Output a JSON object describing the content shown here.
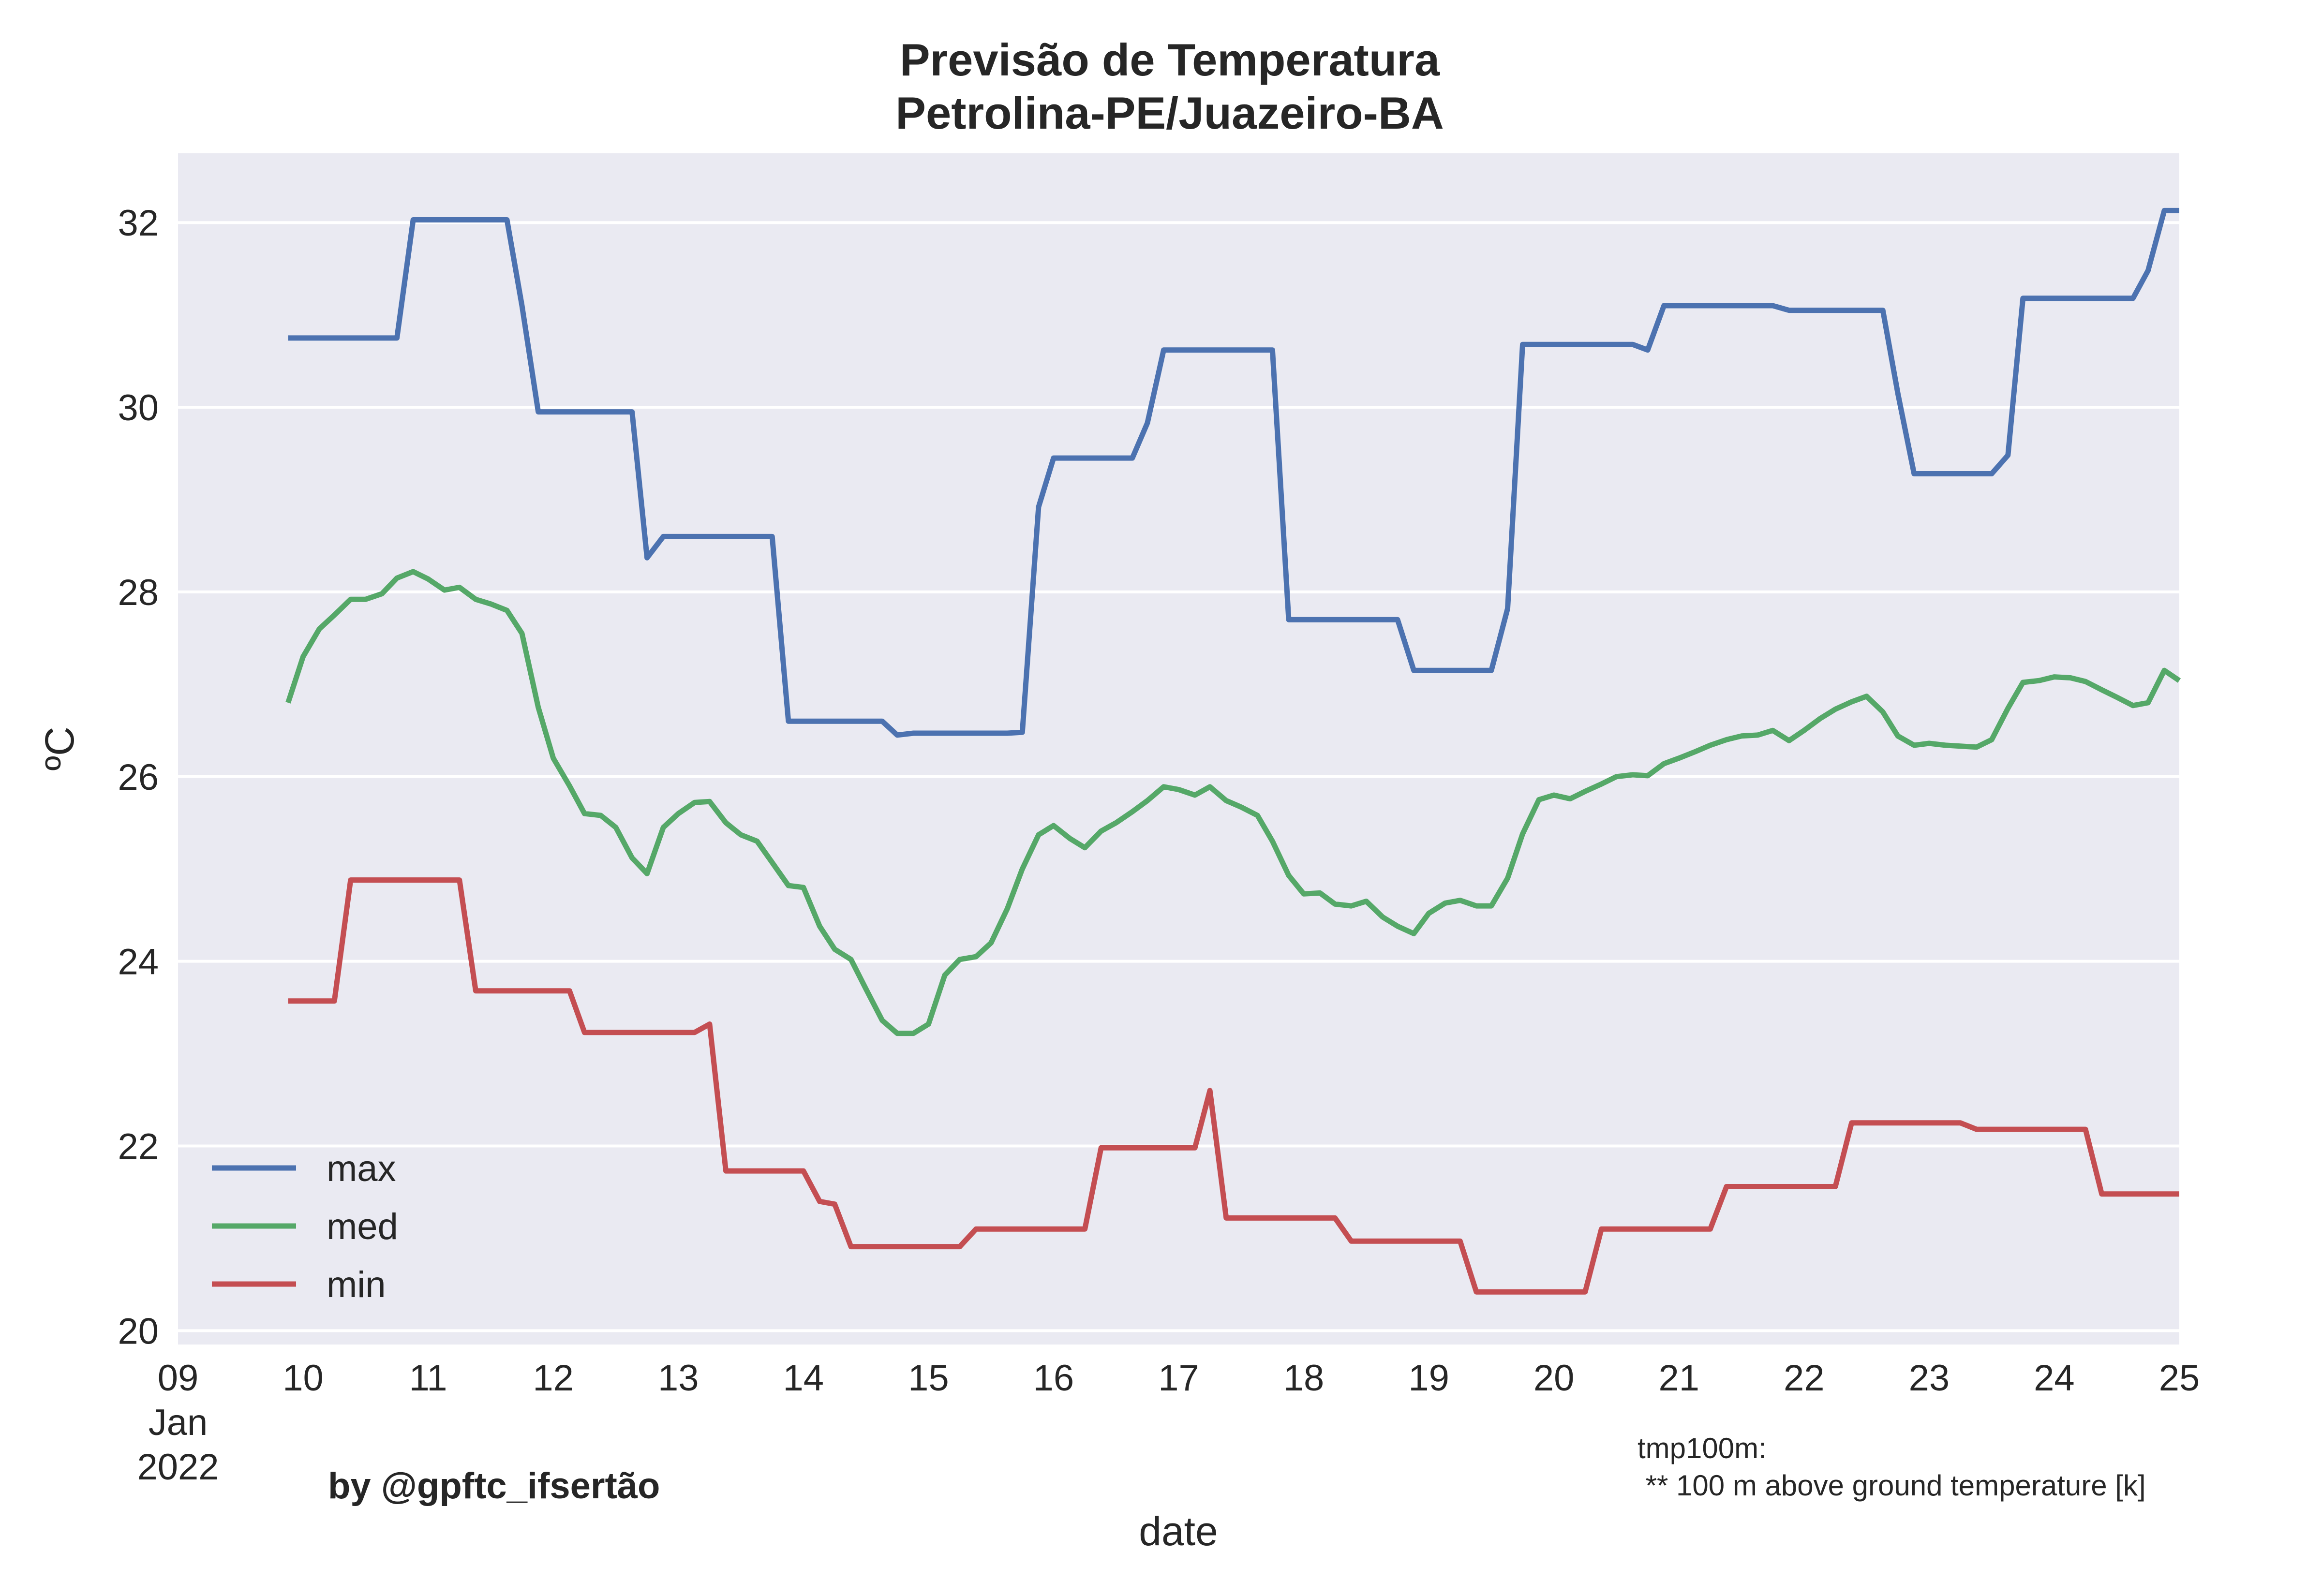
{
  "chart_data": {
    "type": "line",
    "title": "Previsão de Temperatura",
    "subtitle": "Petrolina-PE/Juazeiro-BA",
    "xlabel": "date",
    "ylabel": "ºC",
    "xlim": [
      9,
      25
    ],
    "ylim": [
      19.85,
      32.75
    ],
    "yticks": [
      20,
      22,
      24,
      26,
      28,
      30,
      32
    ],
    "xticks": [
      {
        "v": 9,
        "lines": [
          "09",
          "Jan",
          "2022"
        ]
      },
      {
        "v": 10,
        "lines": [
          "10"
        ]
      },
      {
        "v": 11,
        "lines": [
          "11"
        ]
      },
      {
        "v": 12,
        "lines": [
          "12"
        ]
      },
      {
        "v": 13,
        "lines": [
          "13"
        ]
      },
      {
        "v": 14,
        "lines": [
          "14"
        ]
      },
      {
        "v": 15,
        "lines": [
          "15"
        ]
      },
      {
        "v": 16,
        "lines": [
          "16"
        ]
      },
      {
        "v": 17,
        "lines": [
          "17"
        ]
      },
      {
        "v": 18,
        "lines": [
          "18"
        ]
      },
      {
        "v": 19,
        "lines": [
          "19"
        ]
      },
      {
        "v": 20,
        "lines": [
          "20"
        ]
      },
      {
        "v": 21,
        "lines": [
          "21"
        ]
      },
      {
        "v": 22,
        "lines": [
          "22"
        ]
      },
      {
        "v": 23,
        "lines": [
          "23"
        ]
      },
      {
        "v": 24,
        "lines": [
          "24"
        ]
      },
      {
        "v": 25,
        "lines": [
          "25"
        ]
      }
    ],
    "grid": true,
    "legend_position": "lower-left",
    "background": "#eaeaf2",
    "series": [
      {
        "name": "max",
        "color": "#4c72b0",
        "points": [
          [
            9.88,
            30.75
          ],
          [
            10.75,
            30.75
          ],
          [
            10.88,
            32.03
          ],
          [
            11.63,
            32.03
          ],
          [
            11.75,
            31.1
          ],
          [
            11.88,
            29.95
          ],
          [
            12.63,
            29.95
          ],
          [
            12.75,
            28.37
          ],
          [
            12.88,
            28.6
          ],
          [
            13.75,
            28.6
          ],
          [
            13.88,
            26.6
          ],
          [
            14.63,
            26.6
          ],
          [
            14.75,
            26.45
          ],
          [
            14.88,
            26.47
          ],
          [
            15.63,
            26.47
          ],
          [
            15.75,
            26.48
          ],
          [
            15.88,
            28.92
          ],
          [
            16.0,
            29.45
          ],
          [
            16.63,
            29.45
          ],
          [
            16.75,
            29.83
          ],
          [
            16.88,
            30.62
          ],
          [
            17.75,
            30.62
          ],
          [
            17.88,
            27.7
          ],
          [
            18.75,
            27.7
          ],
          [
            18.88,
            27.15
          ],
          [
            19.5,
            27.15
          ],
          [
            19.63,
            27.82
          ],
          [
            19.75,
            30.68
          ],
          [
            20.63,
            30.68
          ],
          [
            20.75,
            30.62
          ],
          [
            20.88,
            31.1
          ],
          [
            21.75,
            31.1
          ],
          [
            21.88,
            31.05
          ],
          [
            22.63,
            31.05
          ],
          [
            22.75,
            30.15
          ],
          [
            22.88,
            29.28
          ],
          [
            23.5,
            29.28
          ],
          [
            23.63,
            29.48
          ],
          [
            23.75,
            31.18
          ],
          [
            24.63,
            31.18
          ],
          [
            24.75,
            31.48
          ],
          [
            24.88,
            32.13
          ],
          [
            25.0,
            32.13
          ]
        ]
      },
      {
        "name": "med",
        "color": "#55a868",
        "points": [
          [
            9.88,
            26.8
          ],
          [
            10.0,
            27.3
          ],
          [
            10.13,
            27.6
          ],
          [
            10.25,
            27.75
          ],
          [
            10.38,
            27.92
          ],
          [
            10.5,
            27.92
          ],
          [
            10.63,
            27.98
          ],
          [
            10.75,
            28.15
          ],
          [
            10.88,
            28.22
          ],
          [
            11.0,
            28.14
          ],
          [
            11.13,
            28.02
          ],
          [
            11.25,
            28.05
          ],
          [
            11.38,
            27.92
          ],
          [
            11.5,
            27.87
          ],
          [
            11.63,
            27.8
          ],
          [
            11.75,
            27.55
          ],
          [
            11.88,
            26.75
          ],
          [
            12.0,
            26.2
          ],
          [
            12.13,
            25.9
          ],
          [
            12.25,
            25.6
          ],
          [
            12.38,
            25.58
          ],
          [
            12.5,
            25.45
          ],
          [
            12.63,
            25.12
          ],
          [
            12.75,
            24.95
          ],
          [
            12.88,
            25.45
          ],
          [
            13.0,
            25.6
          ],
          [
            13.13,
            25.72
          ],
          [
            13.25,
            25.73
          ],
          [
            13.38,
            25.5
          ],
          [
            13.5,
            25.37
          ],
          [
            13.63,
            25.3
          ],
          [
            13.75,
            25.07
          ],
          [
            13.88,
            24.82
          ],
          [
            14.0,
            24.8
          ],
          [
            14.13,
            24.38
          ],
          [
            14.25,
            24.13
          ],
          [
            14.38,
            24.02
          ],
          [
            14.5,
            23.7
          ],
          [
            14.63,
            23.36
          ],
          [
            14.75,
            23.22
          ],
          [
            14.88,
            23.22
          ],
          [
            15.0,
            23.32
          ],
          [
            15.13,
            23.85
          ],
          [
            15.25,
            24.02
          ],
          [
            15.38,
            24.05
          ],
          [
            15.5,
            24.2
          ],
          [
            15.63,
            24.57
          ],
          [
            15.75,
            25.0
          ],
          [
            15.88,
            25.37
          ],
          [
            16.0,
            25.47
          ],
          [
            16.13,
            25.33
          ],
          [
            16.25,
            25.23
          ],
          [
            16.38,
            25.41
          ],
          [
            16.5,
            25.5
          ],
          [
            16.63,
            25.62
          ],
          [
            16.75,
            25.74
          ],
          [
            16.88,
            25.89
          ],
          [
            17.0,
            25.86
          ],
          [
            17.13,
            25.8
          ],
          [
            17.25,
            25.89
          ],
          [
            17.38,
            25.74
          ],
          [
            17.5,
            25.67
          ],
          [
            17.63,
            25.58
          ],
          [
            17.75,
            25.3
          ],
          [
            17.88,
            24.93
          ],
          [
            18.0,
            24.73
          ],
          [
            18.13,
            24.74
          ],
          [
            18.25,
            24.62
          ],
          [
            18.38,
            24.6
          ],
          [
            18.5,
            24.65
          ],
          [
            18.63,
            24.48
          ],
          [
            18.75,
            24.38
          ],
          [
            18.88,
            24.3
          ],
          [
            19.0,
            24.52
          ],
          [
            19.13,
            24.63
          ],
          [
            19.25,
            24.66
          ],
          [
            19.38,
            24.6
          ],
          [
            19.5,
            24.6
          ],
          [
            19.63,
            24.9
          ],
          [
            19.75,
            25.38
          ],
          [
            19.88,
            25.75
          ],
          [
            20.0,
            25.8
          ],
          [
            20.13,
            25.76
          ],
          [
            20.25,
            25.84
          ],
          [
            20.38,
            25.92
          ],
          [
            20.5,
            26.0
          ],
          [
            20.63,
            26.02
          ],
          [
            20.75,
            26.01
          ],
          [
            20.88,
            26.14
          ],
          [
            21.0,
            26.2
          ],
          [
            21.13,
            26.27
          ],
          [
            21.25,
            26.34
          ],
          [
            21.38,
            26.4
          ],
          [
            21.5,
            26.44
          ],
          [
            21.63,
            26.45
          ],
          [
            21.75,
            26.5
          ],
          [
            21.88,
            26.39
          ],
          [
            22.0,
            26.5
          ],
          [
            22.13,
            26.63
          ],
          [
            22.25,
            26.73
          ],
          [
            22.38,
            26.81
          ],
          [
            22.5,
            26.87
          ],
          [
            22.63,
            26.7
          ],
          [
            22.75,
            26.44
          ],
          [
            22.88,
            26.34
          ],
          [
            23.0,
            26.36
          ],
          [
            23.13,
            26.34
          ],
          [
            23.25,
            26.33
          ],
          [
            23.38,
            26.32
          ],
          [
            23.5,
            26.4
          ],
          [
            23.63,
            26.74
          ],
          [
            23.75,
            27.02
          ],
          [
            23.88,
            27.04
          ],
          [
            24.0,
            27.08
          ],
          [
            24.13,
            27.07
          ],
          [
            24.25,
            27.03
          ],
          [
            24.38,
            26.94
          ],
          [
            24.5,
            26.86
          ],
          [
            24.63,
            26.77
          ],
          [
            24.75,
            26.8
          ],
          [
            24.88,
            27.15
          ],
          [
            25.0,
            27.04
          ]
        ]
      },
      {
        "name": "min",
        "color": "#c44e52",
        "points": [
          [
            9.88,
            23.57
          ],
          [
            10.25,
            23.57
          ],
          [
            10.38,
            24.88
          ],
          [
            11.25,
            24.88
          ],
          [
            11.38,
            23.68
          ],
          [
            12.13,
            23.68
          ],
          [
            12.25,
            23.23
          ],
          [
            13.13,
            23.23
          ],
          [
            13.25,
            23.32
          ],
          [
            13.38,
            21.73
          ],
          [
            14.0,
            21.73
          ],
          [
            14.13,
            21.4
          ],
          [
            14.25,
            21.37
          ],
          [
            14.38,
            20.91
          ],
          [
            15.25,
            20.91
          ],
          [
            15.38,
            21.1
          ],
          [
            16.25,
            21.1
          ],
          [
            16.38,
            21.98
          ],
          [
            17.13,
            21.98
          ],
          [
            17.25,
            22.6
          ],
          [
            17.38,
            21.22
          ],
          [
            18.25,
            21.22
          ],
          [
            18.38,
            20.97
          ],
          [
            19.25,
            20.97
          ],
          [
            19.38,
            20.42
          ],
          [
            20.25,
            20.42
          ],
          [
            20.38,
            21.1
          ],
          [
            21.25,
            21.1
          ],
          [
            21.38,
            21.56
          ],
          [
            22.25,
            21.56
          ],
          [
            22.38,
            22.25
          ],
          [
            23.25,
            22.25
          ],
          [
            23.38,
            22.18
          ],
          [
            24.25,
            22.18
          ],
          [
            24.38,
            21.48
          ],
          [
            25.0,
            21.48
          ]
        ]
      }
    ]
  },
  "credit": "by @gpftc_ifsertão",
  "note": {
    "line1": "tmp100m:",
    "line2": " ** 100 m above ground temperature [k]"
  }
}
